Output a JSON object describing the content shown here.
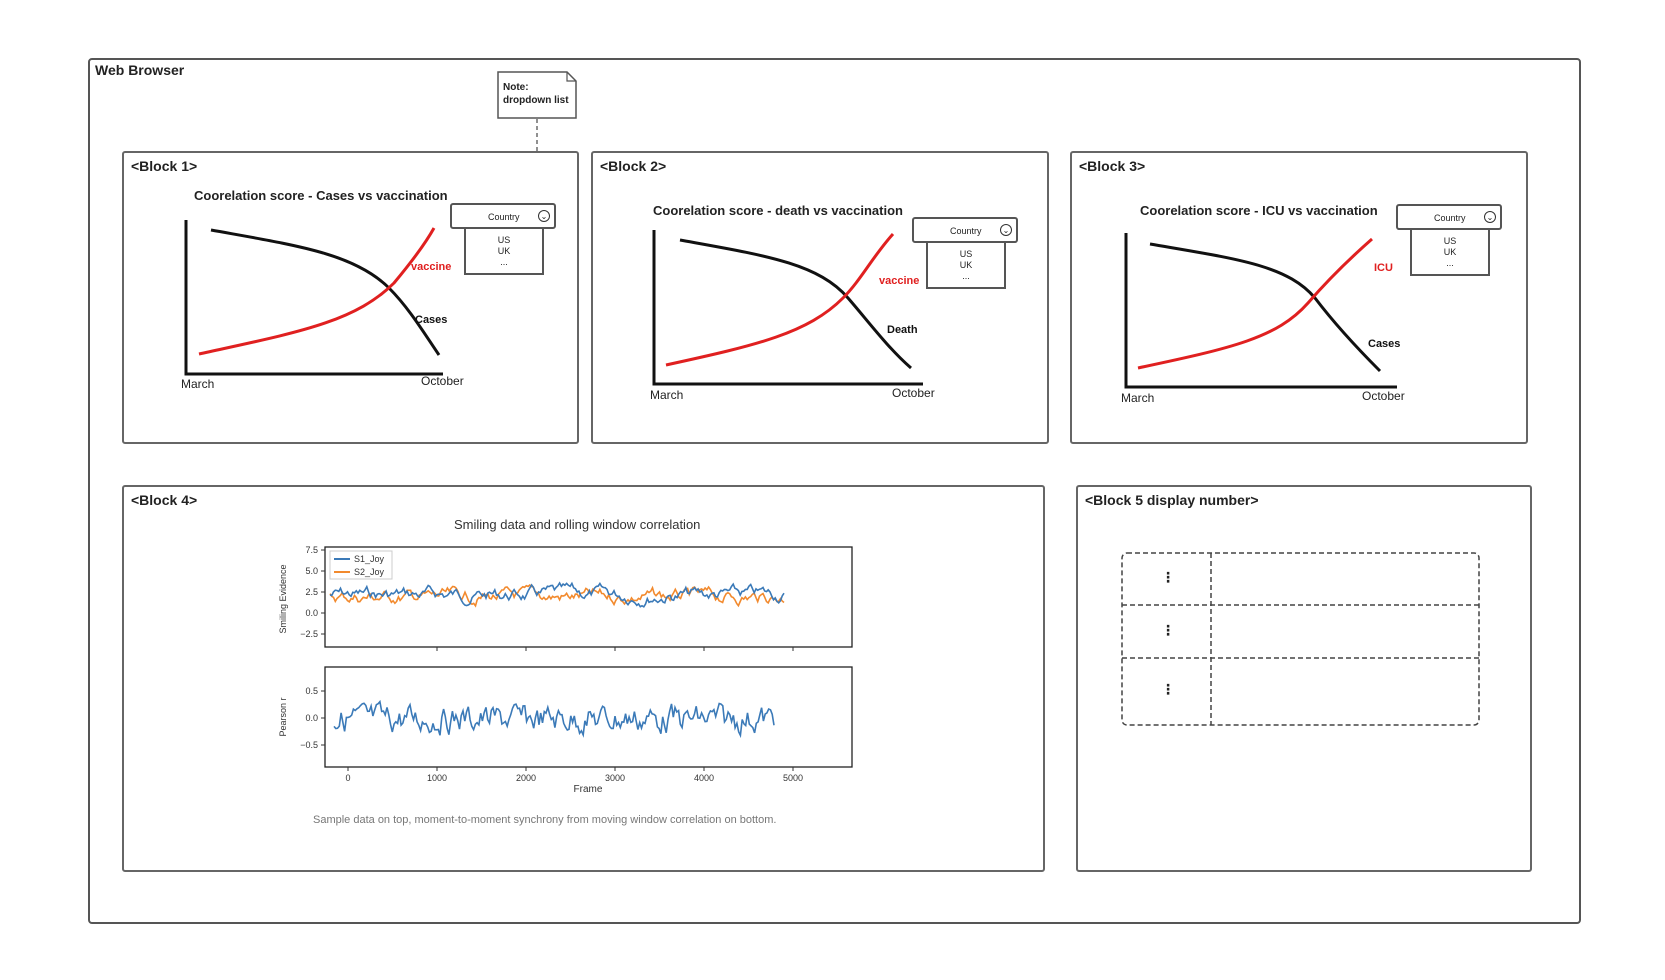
{
  "browser": {
    "title": "Web Browser"
  },
  "note": {
    "line1": "Note:",
    "line2": "dropdown list"
  },
  "blocks": [
    {
      "label": "<Block 1>",
      "chart_title": "Coorelation score - Cases vs vaccination",
      "dropdown": {
        "label": "Country",
        "options": [
          "US",
          "UK",
          "..."
        ]
      },
      "series_red_label": "vaccine",
      "series_black_label": "Cases",
      "x_start": "March",
      "x_end": "October"
    },
    {
      "label": "<Block 2>",
      "chart_title": "Coorelation score - death vs vaccination",
      "dropdown": {
        "label": "Country",
        "options": [
          "US",
          "UK",
          "..."
        ]
      },
      "series_red_label": "vaccine",
      "series_black_label": "Death",
      "x_start": "March",
      "x_end": "October"
    },
    {
      "label": "<Block 3>",
      "chart_title": "Coorelation score - ICU vs vaccination",
      "dropdown": {
        "label": "Country",
        "options": [
          "US",
          "UK",
          "..."
        ]
      },
      "series_red_label": "ICU",
      "series_black_label": "Cases",
      "x_start": "March",
      "x_end": "October"
    }
  ],
  "block4": {
    "label": "<Block 4>",
    "title": "Smiling data and rolling window correlation",
    "caption": "Sample data on top, moment-to-moment synchrony from moving window correlation on bottom.",
    "top": {
      "ylabel": "Smiling Evidence",
      "yticks": [
        "7.5",
        "5.0",
        "2.5",
        "0.0",
        "−2.5"
      ],
      "legend": [
        "S1_Joy",
        "S2_Joy"
      ]
    },
    "bottom": {
      "ylabel": "Pearson r",
      "yticks": [
        "0.5",
        "0.0",
        "−0.5"
      ]
    },
    "xticks": [
      "0",
      "1000",
      "2000",
      "3000",
      "4000",
      "5000"
    ],
    "xlabel": "Frame",
    "colors": {
      "s1": "#3b7ab8",
      "s2": "#f28a2e"
    }
  },
  "block5": {
    "label": "<Block 5 display number>",
    "rows": [
      "⋮",
      "⋮",
      "⋮"
    ]
  },
  "colors": {
    "red": "#e02020",
    "black": "#111111"
  }
}
